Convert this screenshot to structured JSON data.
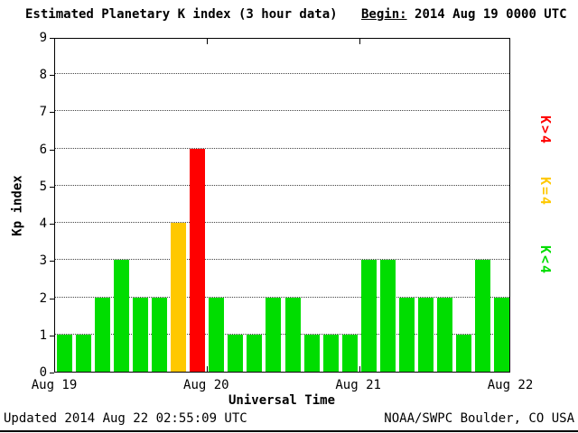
{
  "header": {
    "title": "Estimated Planetary K index (3 hour data)",
    "begin_label": "Begin:",
    "begin_value": "2014 Aug 19 0000 UTC"
  },
  "footer": {
    "updated": "Updated 2014 Aug 22 02:55:09 UTC",
    "credit": "NOAA/SWPC Boulder, CO USA"
  },
  "legend": [
    {
      "label": "K>4",
      "color": "#ff0000"
    },
    {
      "label": "K=4",
      "color": "#ffc800"
    },
    {
      "label": "K<4",
      "color": "#00dd00"
    }
  ],
  "chart_data": {
    "type": "bar",
    "title": "Estimated Planetary K index (3 hour data)",
    "xlabel": "Universal Time",
    "ylabel": "Kp index",
    "ylim": [
      0,
      9
    ],
    "y_ticks": [
      0,
      1,
      2,
      3,
      4,
      5,
      6,
      7,
      8,
      9
    ],
    "x_ticks": [
      "Aug 19",
      "Aug 20",
      "Aug 21",
      "Aug 22"
    ],
    "begin": "2014 Aug 19 0000 UTC",
    "interval_hours": 3,
    "values": [
      1,
      1,
      2,
      3,
      2,
      2,
      4,
      6,
      2,
      1,
      1,
      2,
      2,
      1,
      1,
      1,
      3,
      3,
      2,
      2,
      2,
      1,
      3,
      2
    ],
    "colors": {
      "below4": "#00dd00",
      "equal4": "#ffc800",
      "above4": "#ff0000"
    },
    "grid": "dotted horizontal lines at each integer Kp value",
    "legend_position": "right, rotated 90deg"
  }
}
